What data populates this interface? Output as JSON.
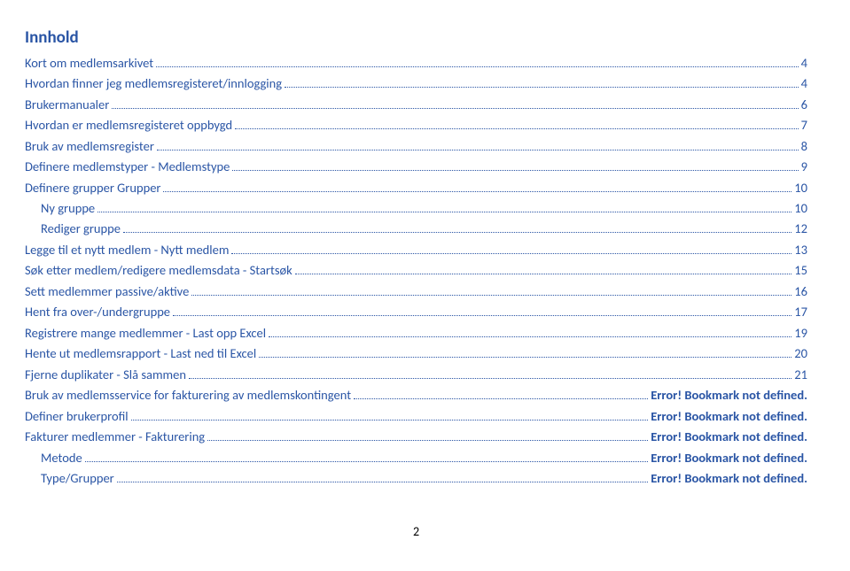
{
  "title": "Innhold",
  "pageNumber": "2",
  "colors": {
    "link": "#2a55a5",
    "text": "#1f4e79",
    "background": "#ffffff"
  },
  "toc": [
    {
      "label": "Kort om medlemsarkivet",
      "page": "4",
      "indent": 0
    },
    {
      "label": "Hvordan finner jeg medlemsregisteret/innlogging",
      "page": "4",
      "indent": 0
    },
    {
      "label": "Brukermanualer",
      "page": "6",
      "indent": 0
    },
    {
      "label": "Hvordan er medlemsregisteret oppbygd",
      "page": "7",
      "indent": 0
    },
    {
      "label": "Bruk av medlemsregister",
      "page": "8",
      "indent": 0
    },
    {
      "label": "Definere medlemstyper - Medlemstype",
      "page": "9",
      "indent": 0
    },
    {
      "label": "Definere grupper Grupper",
      "page": "10",
      "indent": 0
    },
    {
      "label": "Ny gruppe",
      "page": "10",
      "indent": 1
    },
    {
      "label": "Rediger gruppe",
      "page": "12",
      "indent": 1
    },
    {
      "label": "Legge til et nytt medlem - Nytt medlem",
      "page": "13",
      "indent": 0
    },
    {
      "label": "Søk etter medlem/redigere medlemsdata - Startsøk",
      "page": "15",
      "indent": 0
    },
    {
      "label": "Sett medlemmer passive/aktive",
      "page": "16",
      "indent": 0
    },
    {
      "label": "Hent fra over-/undergruppe",
      "page": "17",
      "indent": 0
    },
    {
      "label": "Registrere mange medlemmer - Last opp Excel",
      "page": "19",
      "indent": 0
    },
    {
      "label": "Hente ut medlemsrapport - Last ned til Excel",
      "page": "20",
      "indent": 0
    },
    {
      "label": "Fjerne duplikater - Slå sammen",
      "page": "21",
      "indent": 0
    },
    {
      "label": "Bruk av medlemsservice for fakturering av medlemskontingent",
      "page": "Error! Bookmark not defined.",
      "indent": 0
    },
    {
      "label": "Definer brukerprofil",
      "page": "Error! Bookmark not defined.",
      "indent": 0
    },
    {
      "label": "Fakturer medlemmer - Fakturering",
      "page": "Error! Bookmark not defined.",
      "indent": 0
    },
    {
      "label": "Metode",
      "page": "Error! Bookmark not defined.",
      "indent": 1
    },
    {
      "label": "Type/Grupper",
      "page": "Error! Bookmark not defined.",
      "indent": 1
    }
  ]
}
